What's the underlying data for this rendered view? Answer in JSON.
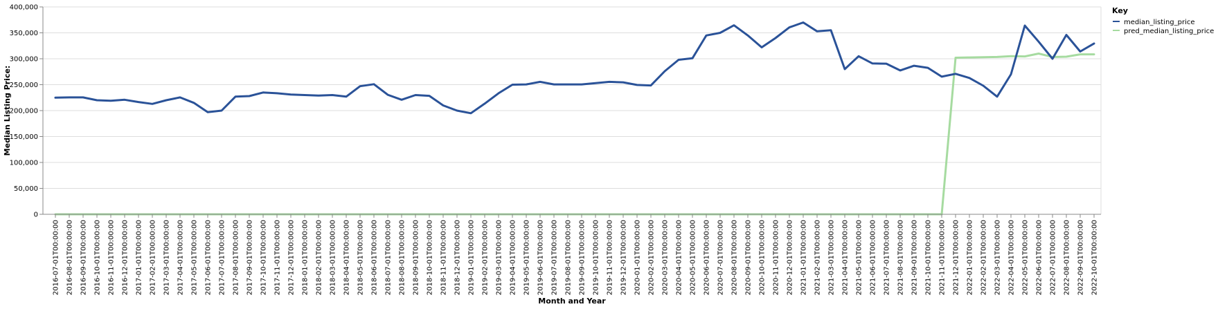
{
  "chart_data": {
    "type": "line",
    "xlabel": "Month and Year",
    "ylabel": "Median Listing Price:",
    "ylim": [
      0,
      400000
    ],
    "yticks": [
      "0",
      "50,000",
      "100,000",
      "150,000",
      "200,000",
      "250,000",
      "300,000",
      "350,000",
      "400,000"
    ],
    "grid": true,
    "legend": {
      "title": "Key",
      "position": "top-right"
    },
    "x": [
      "2016-07-01T00:00:00",
      "2016-08-01T00:00:00",
      "2016-09-01T00:00:00",
      "2016-10-01T00:00:00",
      "2016-11-01T00:00:00",
      "2016-12-01T00:00:00",
      "2017-01-01T00:00:00",
      "2017-02-01T00:00:00",
      "2017-03-01T00:00:00",
      "2017-04-01T00:00:00",
      "2017-05-01T00:00:00",
      "2017-06-01T00:00:00",
      "2017-07-01T00:00:00",
      "2017-08-01T00:00:00",
      "2017-09-01T00:00:00",
      "2017-10-01T00:00:00",
      "2017-11-01T00:00:00",
      "2017-12-01T00:00:00",
      "2018-01-01T00:00:00",
      "2018-02-01T00:00:00",
      "2018-03-01T00:00:00",
      "2018-04-01T00:00:00",
      "2018-05-01T00:00:00",
      "2018-06-01T00:00:00",
      "2018-07-01T00:00:00",
      "2018-08-01T00:00:00",
      "2018-09-01T00:00:00",
      "2018-10-01T00:00:00",
      "2018-11-01T00:00:00",
      "2018-12-01T00:00:00",
      "2019-01-01T00:00:00",
      "2019-02-01T00:00:00",
      "2019-03-01T00:00:00",
      "2019-04-01T00:00:00",
      "2019-05-01T00:00:00",
      "2019-06-01T00:00:00",
      "2019-07-01T00:00:00",
      "2019-08-01T00:00:00",
      "2019-09-01T00:00:00",
      "2019-10-01T00:00:00",
      "2019-11-01T00:00:00",
      "2019-12-01T00:00:00",
      "2020-01-01T00:00:00",
      "2020-02-01T00:00:00",
      "2020-03-01T00:00:00",
      "2020-04-01T00:00:00",
      "2020-05-01T00:00:00",
      "2020-06-01T00:00:00",
      "2020-07-01T00:00:00",
      "2020-08-01T00:00:00",
      "2020-09-01T00:00:00",
      "2020-10-01T00:00:00",
      "2020-11-01T00:00:00",
      "2020-12-01T00:00:00",
      "2021-01-01T00:00:00",
      "2021-02-01T00:00:00",
      "2021-03-01T00:00:00",
      "2021-04-01T00:00:00",
      "2021-05-01T00:00:00",
      "2021-06-01T00:00:00",
      "2021-07-01T00:00:00",
      "2021-08-01T00:00:00",
      "2021-09-01T00:00:00",
      "2021-10-01T00:00:00",
      "2021-11-01T00:00:00",
      "2021-12-01T00:00:00",
      "2022-01-01T00:00:00",
      "2022-02-01T00:00:00",
      "2022-03-01T00:00:00",
      "2022-04-01T00:00:00",
      "2022-05-01T00:00:00",
      "2022-06-01T00:00:00",
      "2022-07-01T00:00:00",
      "2022-08-01T00:00:00",
      "2022-09-01T00:00:00",
      "2022-10-01T00:00:00"
    ],
    "series": [
      {
        "name": "median_listing_price",
        "color": "#2a5298",
        "values": [
          225000,
          225500,
          225500,
          220000,
          219000,
          221000,
          216500,
          213000,
          220000,
          225500,
          215000,
          197000,
          200000,
          227000,
          228000,
          235000,
          233500,
          231000,
          230000,
          229000,
          230000,
          227000,
          247000,
          251000,
          230500,
          221000,
          230000,
          228500,
          210000,
          200000,
          195000,
          213500,
          233500,
          250000,
          250500,
          255500,
          250500,
          250500,
          250500,
          253000,
          255500,
          254500,
          249500,
          248500,
          276000,
          298000,
          301000,
          345000,
          350000,
          364500,
          345000,
          322000,
          340000,
          360500,
          370000,
          353000,
          355000,
          280000,
          305000,
          291000,
          290500,
          277500,
          286500,
          282500,
          265500,
          271000,
          263000,
          248000,
          227000,
          270000,
          364000,
          333000,
          300000,
          346000,
          314000,
          329500
        ]
      },
      {
        "name": "pred_median_listing_price",
        "color": "#a6dba0",
        "values": [
          0,
          0,
          0,
          0,
          0,
          0,
          0,
          0,
          0,
          0,
          0,
          0,
          0,
          0,
          0,
          0,
          0,
          0,
          0,
          0,
          0,
          0,
          0,
          0,
          0,
          0,
          0,
          0,
          0,
          0,
          0,
          0,
          0,
          0,
          0,
          0,
          0,
          0,
          0,
          0,
          0,
          0,
          0,
          0,
          0,
          0,
          0,
          0,
          0,
          0,
          0,
          0,
          0,
          0,
          0,
          0,
          0,
          0,
          0,
          0,
          0,
          0,
          0,
          0,
          0,
          302000,
          302500,
          303000,
          303500,
          305000,
          304500,
          310000,
          303500,
          304000,
          308500,
          308500
        ]
      }
    ]
  }
}
